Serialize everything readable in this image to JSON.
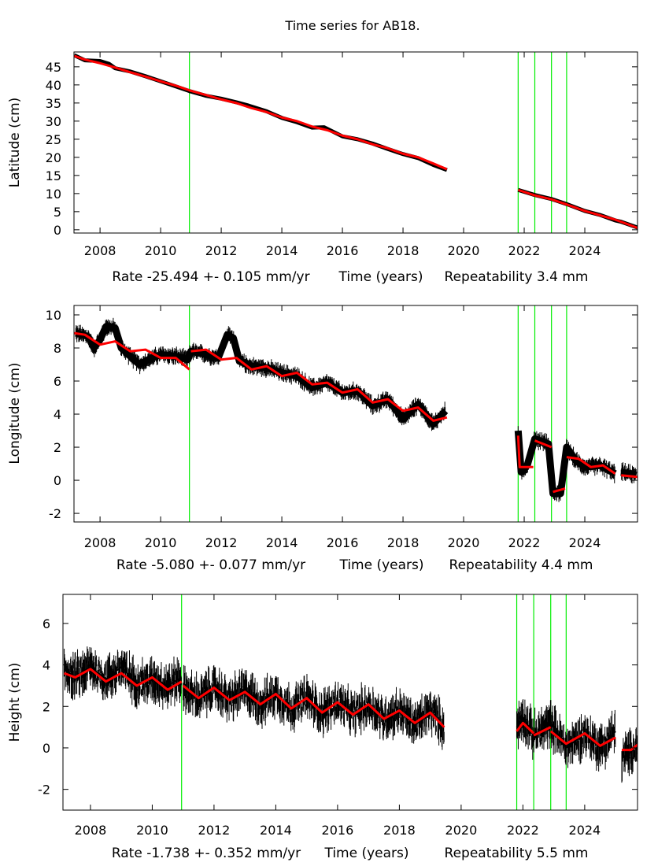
{
  "title": "Time series for AB18.",
  "colors": {
    "observations": "#000000",
    "model": "#ff0000",
    "event_lines": "#00ee00"
  },
  "chart_data": [
    {
      "type": "line",
      "ylabel": "Latitude (cm)",
      "xlabel": "Time (years)",
      "rate": "Rate -25.494 +- 0.105 mm/yr",
      "repeatability": "Repeatability 3.4 mm",
      "xlim": [
        2007.14,
        2025.74
      ],
      "ylim": [
        -0.9,
        49.1
      ],
      "xticks": [
        2008,
        2010,
        2012,
        2014,
        2016,
        2018,
        2020,
        2022,
        2024
      ],
      "yticks": [
        0,
        5,
        10,
        15,
        20,
        25,
        30,
        35,
        40,
        45
      ],
      "event_lines": [
        2010.95,
        2021.8,
        2022.35,
        2022.9,
        2023.4
      ],
      "observations": [
        [
          [
            2007.15,
            48.2
          ],
          [
            2007.5,
            46.8
          ],
          [
            2008,
            46.6
          ],
          [
            2008.3,
            45.8
          ],
          [
            2008.5,
            44.6
          ],
          [
            2009,
            43.7
          ],
          [
            2009.5,
            42.4
          ],
          [
            2010,
            41.0
          ],
          [
            2010.5,
            39.6
          ],
          [
            2010.95,
            38.3
          ],
          [
            2011.5,
            37.0
          ],
          [
            2012,
            36.2
          ],
          [
            2012.5,
            35.2
          ],
          [
            2012.9,
            34.3
          ],
          [
            2013.5,
            32.7
          ],
          [
            2014,
            30.9
          ],
          [
            2014.5,
            29.7
          ],
          [
            2015,
            28.2
          ],
          [
            2015.4,
            28.3
          ],
          [
            2016,
            25.8
          ],
          [
            2016.5,
            25.0
          ],
          [
            2017,
            23.8
          ],
          [
            2017.5,
            22.3
          ],
          [
            2018,
            20.9
          ],
          [
            2018.5,
            19.8
          ],
          [
            2019,
            17.9
          ],
          [
            2019.45,
            16.5
          ]
        ],
        [
          [
            2021.8,
            11.0
          ],
          [
            2022.35,
            9.6
          ],
          [
            2022.9,
            8.5
          ],
          [
            2023.4,
            7.1
          ],
          [
            2024,
            5.2
          ],
          [
            2024.5,
            4.1
          ],
          [
            2025,
            2.6
          ],
          [
            2025.2,
            2.2
          ],
          [
            2025.75,
            0.6
          ]
        ]
      ],
      "model": [
        [
          [
            2007.15,
            48.0
          ],
          [
            2007.5,
            47.0
          ],
          [
            2008,
            46.0
          ],
          [
            2008.5,
            44.8
          ],
          [
            2009,
            43.5
          ],
          [
            2009.5,
            42.3
          ],
          [
            2010,
            41.0
          ],
          [
            2010.5,
            39.8
          ],
          [
            2010.95,
            38.5
          ],
          [
            2011.5,
            37.2
          ],
          [
            2012,
            36.0
          ],
          [
            2012.5,
            35.0
          ],
          [
            2013,
            33.6
          ],
          [
            2013.5,
            32.5
          ],
          [
            2014,
            31.0
          ],
          [
            2014.5,
            30.0
          ],
          [
            2015,
            28.5
          ],
          [
            2015.5,
            27.5
          ],
          [
            2016,
            26.0
          ],
          [
            2016.5,
            25.0
          ],
          [
            2017,
            23.6
          ],
          [
            2017.5,
            22.5
          ],
          [
            2018,
            21.0
          ],
          [
            2018.5,
            20.0
          ],
          [
            2019,
            18.3
          ],
          [
            2019.45,
            16.7
          ]
        ],
        [
          [
            2021.8,
            11.0
          ],
          [
            2022.35,
            9.5
          ],
          [
            2022.9,
            8.4
          ],
          [
            2023.4,
            7.0
          ],
          [
            2024,
            5.2
          ],
          [
            2024.5,
            4.0
          ],
          [
            2025,
            2.8
          ],
          [
            2025.2,
            2.2
          ],
          [
            2025.75,
            0.5
          ]
        ]
      ]
    },
    {
      "type": "line",
      "ylabel": "Longitude (cm)",
      "xlabel": "Time (years)",
      "rate": "Rate -5.080 +- 0.077 mm/yr",
      "repeatability": "Repeatability 4.4 mm",
      "xlim": [
        2007.14,
        2025.74
      ],
      "ylim": [
        -2.52,
        10.57
      ],
      "xticks": [
        2008,
        2010,
        2012,
        2014,
        2016,
        2018,
        2020,
        2022,
        2024
      ],
      "yticks": [
        -2,
        0,
        2,
        4,
        6,
        8,
        10
      ],
      "event_lines": [
        2010.95,
        2021.8,
        2022.35,
        2022.9,
        2023.4
      ],
      "observations": [
        [
          [
            2007.2,
            8.9
          ],
          [
            2007.6,
            8.7
          ],
          [
            2007.8,
            8.0
          ],
          [
            2008.0,
            8.5
          ],
          [
            2008.2,
            9.3
          ],
          [
            2008.5,
            9.2
          ],
          [
            2008.7,
            8.0
          ],
          [
            2009.0,
            7.5
          ],
          [
            2009.3,
            7.0
          ],
          [
            2009.6,
            7.3
          ],
          [
            2010.0,
            7.6
          ],
          [
            2010.5,
            7.5
          ],
          [
            2010.9,
            7.3
          ],
          [
            2011.0,
            7.8
          ],
          [
            2011.5,
            7.6
          ],
          [
            2011.9,
            7.4
          ],
          [
            2012.2,
            8.8
          ],
          [
            2012.4,
            8.6
          ],
          [
            2012.6,
            7.2
          ],
          [
            2013.0,
            6.9
          ],
          [
            2013.5,
            6.8
          ],
          [
            2014.0,
            6.5
          ],
          [
            2014.5,
            6.3
          ],
          [
            2015.0,
            5.6
          ],
          [
            2015.5,
            5.9
          ],
          [
            2016.0,
            5.3
          ],
          [
            2016.5,
            5.4
          ],
          [
            2017.0,
            4.5
          ],
          [
            2017.5,
            4.9
          ],
          [
            2018.0,
            3.7
          ],
          [
            2018.5,
            4.6
          ],
          [
            2019.0,
            3.4
          ],
          [
            2019.4,
            4.2
          ]
        ],
        [
          [
            2021.8,
            3.0
          ],
          [
            2021.9,
            0.5
          ],
          [
            2022.1,
            0.9
          ],
          [
            2022.35,
            2.5
          ],
          [
            2022.8,
            2.2
          ],
          [
            2022.95,
            -0.8
          ],
          [
            2023.2,
            -0.8
          ],
          [
            2023.4,
            2.0
          ],
          [
            2023.7,
            1.2
          ],
          [
            2024.0,
            0.8
          ],
          [
            2024.5,
            0.9
          ],
          [
            2025.0,
            0.4
          ]
        ],
        [
          [
            2025.2,
            0.5
          ],
          [
            2025.7,
            0.3
          ]
        ]
      ],
      "model": [
        [
          [
            2007.15,
            8.9
          ],
          [
            2007.5,
            8.8
          ],
          [
            2008,
            8.2
          ],
          [
            2008.5,
            8.4
          ],
          [
            2009,
            7.8
          ],
          [
            2009.5,
            7.9
          ],
          [
            2010,
            7.4
          ],
          [
            2010.5,
            7.4
          ],
          [
            2010.95,
            6.7
          ]
        ],
        [
          [
            2011.0,
            7.8
          ],
          [
            2011.5,
            7.9
          ],
          [
            2012,
            7.3
          ],
          [
            2012.5,
            7.4
          ],
          [
            2013,
            6.7
          ],
          [
            2013.5,
            6.9
          ],
          [
            2014,
            6.3
          ],
          [
            2014.5,
            6.5
          ],
          [
            2015,
            5.8
          ],
          [
            2015.5,
            5.9
          ],
          [
            2016,
            5.3
          ],
          [
            2016.5,
            5.5
          ],
          [
            2017,
            4.7
          ],
          [
            2017.5,
            4.9
          ],
          [
            2018,
            4.2
          ],
          [
            2018.5,
            4.4
          ],
          [
            2019,
            3.6
          ],
          [
            2019.45,
            3.8
          ]
        ],
        [
          [
            2021.8,
            2.7
          ],
          [
            2021.85,
            0.8
          ],
          [
            2022.3,
            0.8
          ]
        ],
        [
          [
            2022.35,
            2.4
          ],
          [
            2022.9,
            2.0
          ]
        ],
        [
          [
            2022.95,
            -0.7
          ],
          [
            2023.35,
            -0.5
          ]
        ],
        [
          [
            2023.4,
            1.4
          ],
          [
            2023.8,
            1.3
          ],
          [
            2024.2,
            0.8
          ],
          [
            2024.6,
            0.9
          ],
          [
            2025.0,
            0.4
          ]
        ],
        [
          [
            2025.2,
            0.3
          ],
          [
            2025.75,
            0.2
          ]
        ]
      ]
    },
    {
      "type": "line",
      "ylabel": "Height (cm)",
      "xlabel": "Time (years)",
      "rate": "Rate -1.738 +- 0.352 mm/yr",
      "repeatability": "Repeatability 5.5 mm",
      "xlim": [
        2007.11,
        2025.71
      ],
      "ylim": [
        -3.0,
        7.4
      ],
      "xticks": [
        2008,
        2010,
        2012,
        2014,
        2016,
        2018,
        2020,
        2022,
        2024
      ],
      "yticks": [
        -2,
        0,
        2,
        4,
        6
      ],
      "event_lines": [
        2010.95,
        2021.8,
        2022.35,
        2022.9,
        2023.4
      ],
      "observations": [
        [
          [
            2007.15,
            3.8
          ],
          [
            2007.5,
            3.4
          ],
          [
            2008,
            3.9
          ],
          [
            2008.5,
            3.3
          ],
          [
            2009,
            3.9
          ],
          [
            2009.5,
            3.1
          ],
          [
            2010,
            3.3
          ],
          [
            2010.5,
            3.0
          ],
          [
            2010.95,
            3.4
          ]
        ],
        [
          [
            2011.0,
            2.8
          ],
          [
            2011.5,
            2.4
          ],
          [
            2012,
            2.9
          ],
          [
            2012.5,
            2.3
          ],
          [
            2013,
            2.8
          ],
          [
            2013.5,
            2.1
          ],
          [
            2014,
            2.6
          ],
          [
            2014.5,
            1.9
          ],
          [
            2015,
            2.4
          ],
          [
            2015.5,
            1.7
          ],
          [
            2016,
            2.2
          ],
          [
            2016.5,
            1.6
          ],
          [
            2017,
            2.1
          ],
          [
            2017.5,
            1.4
          ],
          [
            2018,
            1.8
          ],
          [
            2018.5,
            1.1
          ],
          [
            2019,
            1.8
          ],
          [
            2019.45,
            1.0
          ]
        ],
        [
          [
            2021.8,
            1.0
          ],
          [
            2022.0,
            1.5
          ],
          [
            2022.35,
            0.6
          ],
          [
            2022.9,
            1.2
          ],
          [
            2023.4,
            0.0
          ],
          [
            2024,
            0.7
          ],
          [
            2024.5,
            0.0
          ],
          [
            2025,
            0.8
          ]
        ],
        [
          [
            2025.2,
            -0.5
          ],
          [
            2025.5,
            -0.2
          ],
          [
            2025.75,
            0.3
          ]
        ]
      ],
      "model": [
        [
          [
            2007.15,
            3.6
          ],
          [
            2007.5,
            3.4
          ],
          [
            2008,
            3.8
          ],
          [
            2008.5,
            3.2
          ],
          [
            2009,
            3.6
          ],
          [
            2009.5,
            3.0
          ],
          [
            2010,
            3.4
          ],
          [
            2010.5,
            2.8
          ],
          [
            2010.95,
            3.2
          ]
        ],
        [
          [
            2011.0,
            3.0
          ],
          [
            2011.5,
            2.4
          ],
          [
            2012,
            2.9
          ],
          [
            2012.5,
            2.3
          ],
          [
            2013,
            2.7
          ],
          [
            2013.5,
            2.1
          ],
          [
            2014,
            2.6
          ],
          [
            2014.5,
            1.9
          ],
          [
            2015,
            2.4
          ],
          [
            2015.5,
            1.7
          ],
          [
            2016,
            2.2
          ],
          [
            2016.5,
            1.6
          ],
          [
            2017,
            2.1
          ],
          [
            2017.5,
            1.4
          ],
          [
            2018,
            1.8
          ],
          [
            2018.5,
            1.2
          ],
          [
            2019,
            1.7
          ],
          [
            2019.45,
            1.0
          ]
        ],
        [
          [
            2021.8,
            0.8
          ],
          [
            2022.0,
            1.2
          ],
          [
            2022.35,
            0.7
          ]
        ],
        [
          [
            2022.35,
            0.6
          ],
          [
            2022.9,
            1.0
          ]
        ],
        [
          [
            2022.9,
            0.8
          ],
          [
            2023.4,
            0.2
          ],
          [
            2024,
            0.7
          ],
          [
            2024.5,
            0.1
          ],
          [
            2025,
            0.5
          ]
        ],
        [
          [
            2025.2,
            -0.1
          ],
          [
            2025.5,
            -0.1
          ],
          [
            2025.75,
            0.2
          ]
        ]
      ]
    }
  ]
}
